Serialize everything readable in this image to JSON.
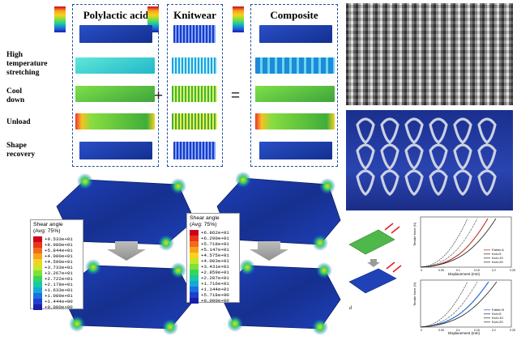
{
  "columns": {
    "pla": "Polylactic acid",
    "knit": "Knitwear",
    "composite": "Composite"
  },
  "operators": {
    "plus": "+",
    "equals": "="
  },
  "rows": [
    {
      "line1": "High",
      "line2": "temperature",
      "line3": "stretching"
    },
    {
      "line1": "Cool",
      "line2": "down",
      "line3": ""
    },
    {
      "line1": "Unload",
      "line2": "",
      "line3": ""
    },
    {
      "line1": "Shape",
      "line2": "recovery",
      "line3": ""
    }
  ],
  "legend_left": {
    "title1": "Shear angle",
    "title2": "(Avg: 75%)",
    "values": [
      "+9.533e+01",
      "+8.980e+01",
      "+5.844e+01",
      "+4.900e+01",
      "+4.500e+01",
      "+3.733e+01",
      "+3.267e+01",
      "+2.722e+01",
      "+2.178e+01",
      "+1.633e+01",
      "+1.089e+01",
      "+1.444e+00",
      "+0.000e+00"
    ],
    "colors": [
      "#d0021b",
      "#e8361a",
      "#f26a1c",
      "#f7a21e",
      "#f6d21f",
      "#c7e72a",
      "#7fe136",
      "#35d65a",
      "#18c9a6",
      "#15a9d6",
      "#1e6fe0",
      "#1f3fd0",
      "#1a1fa8"
    ]
  },
  "legend_right": {
    "title1": "Shear angle",
    "title2": "(Avg: 75%)",
    "values": [
      "+6.862e+01",
      "+6.290e+01",
      "+5.718e+01",
      "+5.147e+01",
      "+4.575e+01",
      "+4.003e+01",
      "+3.431e+01",
      "+2.859e+01",
      "+2.287e+01",
      "+1.716e+01",
      "+1.144e+01",
      "+5.718e+00",
      "+0.000e+00"
    ],
    "colors": [
      "#d0021b",
      "#e8361a",
      "#f26a1c",
      "#f7a21e",
      "#f6d21f",
      "#c7e72a",
      "#7fe136",
      "#35d65a",
      "#18c9a6",
      "#15a9d6",
      "#1e6fe0",
      "#1f3fd0",
      "#1a1fa8"
    ]
  },
  "chart_top": {
    "ylabel": "Tensile force (N)",
    "xlabel": "Displacement (mm)",
    "legend": [
      "Fabric A",
      "Kch=5",
      "Kch=10",
      "Kch=20"
    ],
    "xticks": [
      "0",
      "0.05",
      "0.1",
      "0.15",
      "0.2",
      "0.25"
    ]
  },
  "chart_bottom": {
    "ylabel": "Tensile force (N)",
    "xlabel": "Displacement (mm)",
    "legend": [
      "Fabric B",
      "Kch=5",
      "Kch=10",
      "Kch=20"
    ],
    "xticks": [
      "0",
      "0.05",
      "0.1",
      "0.15",
      "0.2",
      "0.25"
    ]
  },
  "panel_letter": "d"
}
